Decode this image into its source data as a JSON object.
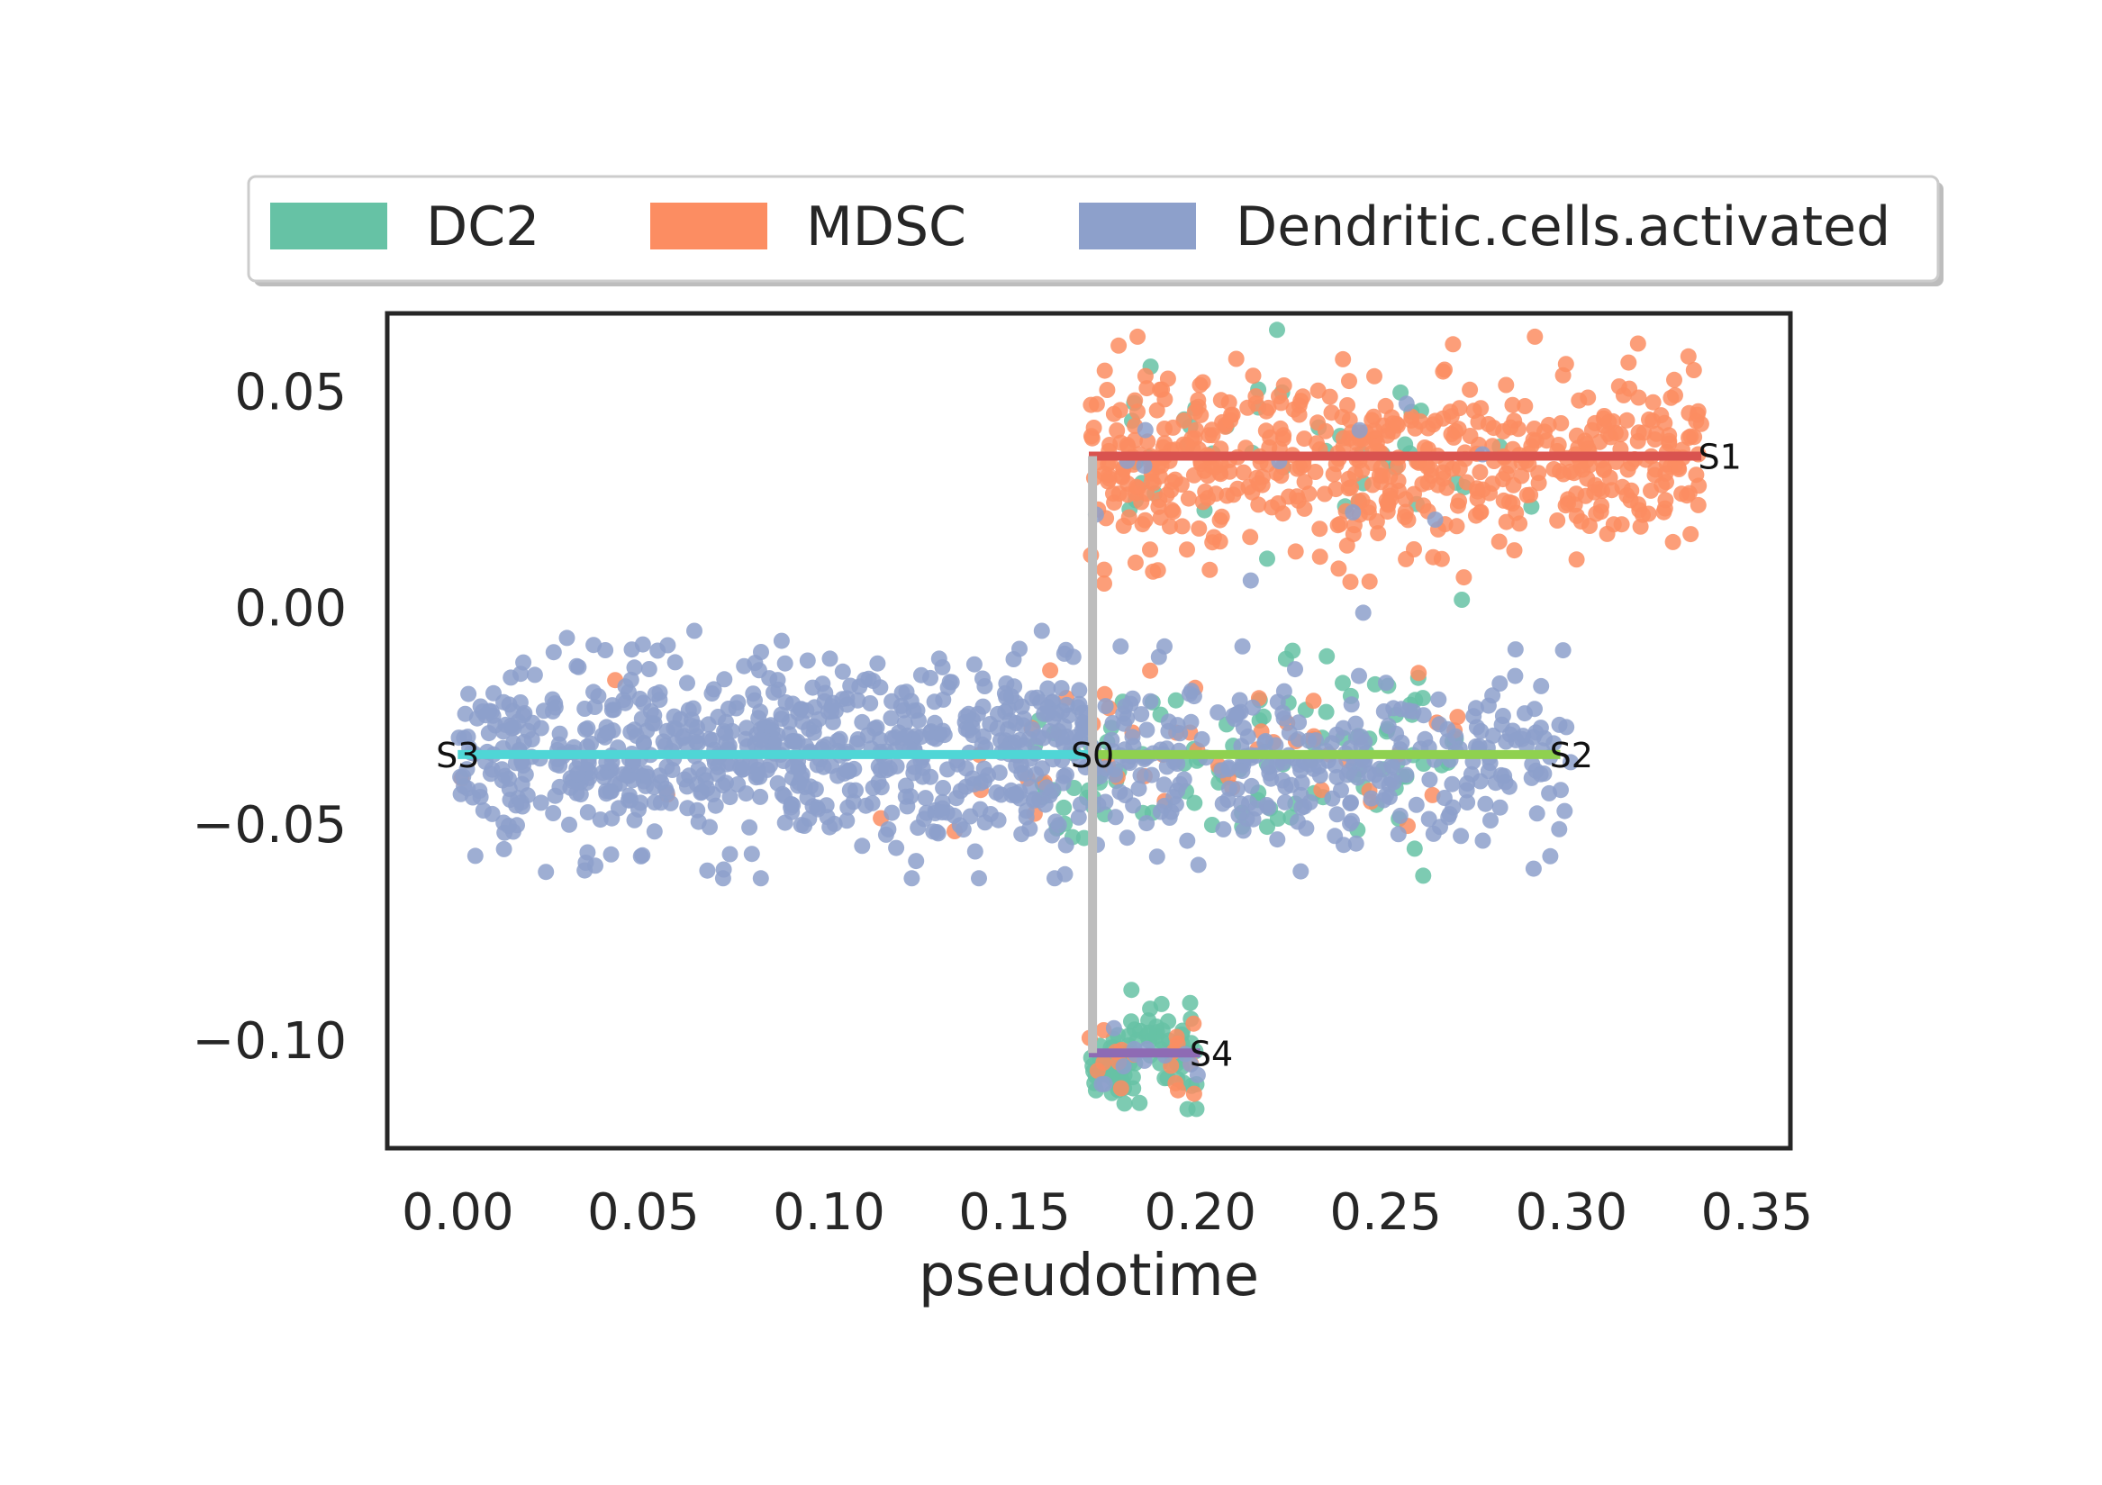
{
  "chart_data": {
    "type": "scatter",
    "title": "",
    "xlabel": "pseudotime",
    "ylabel": "",
    "xlim": [
      -0.019,
      0.359
    ],
    "ylim": [
      -0.125,
      0.068
    ],
    "xticks": [
      0.0,
      0.05,
      0.1,
      0.15,
      0.2,
      0.25,
      0.3,
      0.35
    ],
    "xtick_labels": [
      "0.00",
      "0.05",
      "0.10",
      "0.15",
      "0.20",
      "0.25",
      "0.30",
      "0.35"
    ],
    "yticks": [
      0.05,
      0.0,
      -0.05,
      -0.1
    ],
    "ytick_labels": [
      "0.05",
      "0.00",
      "−0.05",
      "−0.10"
    ],
    "grid": false,
    "legend": {
      "placement": "top",
      "entries": [
        {
          "label": "DC2",
          "color": "#66c2a5"
        },
        {
          "label": "MDSC",
          "color": "#fc8d62"
        },
        {
          "label": "Dendritic.cells.activated",
          "color": "#8da0cb"
        }
      ]
    },
    "branches": [
      {
        "name": "S1",
        "color": "#d9534f",
        "points": [
          [
            0.17,
            0.035
          ],
          [
            0.335,
            0.035
          ]
        ],
        "label_pos": [
          0.34,
          0.035
        ]
      },
      {
        "name": "S2",
        "color": "#8fd14f",
        "points": [
          [
            0.17,
            -0.034
          ],
          [
            0.297,
            -0.034
          ]
        ],
        "label_pos": [
          0.3,
          -0.034
        ]
      },
      {
        "name": "S3",
        "color": "#4fd6d6",
        "points": [
          [
            0.0,
            -0.034
          ],
          [
            0.17,
            -0.034
          ]
        ],
        "label_pos": [
          0.0,
          -0.034
        ]
      },
      {
        "name": "S4",
        "color": "#8e6bb4",
        "points": [
          [
            0.17,
            -0.103
          ],
          [
            0.2,
            -0.103
          ]
        ],
        "label_pos": [
          0.203,
          -0.103
        ]
      },
      {
        "name": "S0",
        "color": "#bdbdbd",
        "points": [
          [
            0.171,
            0.035
          ],
          [
            0.171,
            -0.103
          ]
        ],
        "label_pos": [
          0.171,
          -0.034
        ]
      }
    ],
    "series": [
      {
        "name": "DC2",
        "color": "#66c2a5",
        "clusters": [
          {
            "x_range": [
              0.17,
              0.2
            ],
            "y_center": -0.104,
            "y_spread": 0.006,
            "n": 85
          },
          {
            "x_range": [
              0.155,
              0.27
            ],
            "y_center": -0.036,
            "y_spread": 0.01,
            "n": 110
          },
          {
            "x_range": [
              0.18,
              0.29
            ],
            "y_center": 0.033,
            "y_spread": 0.012,
            "n": 45
          }
        ]
      },
      {
        "name": "MDSC",
        "color": "#fc8d62",
        "clusters": [
          {
            "x_range": [
              0.17,
              0.335
            ],
            "y_center": 0.034,
            "y_spread": 0.011,
            "n": 560
          },
          {
            "x_range": [
              0.14,
              0.27
            ],
            "y_center": -0.034,
            "y_spread": 0.011,
            "n": 45
          },
          {
            "x_range": [
              0.0,
              0.15
            ],
            "y_center": -0.045,
            "y_spread": 0.011,
            "n": 6
          },
          {
            "x_range": [
              0.17,
              0.2
            ],
            "y_center": -0.104,
            "y_spread": 0.006,
            "n": 18
          }
        ]
      },
      {
        "name": "Dendritic.cells.activated",
        "color": "#8da0cb",
        "clusters": [
          {
            "x_range": [
              0.0,
              0.17
            ],
            "y_center": -0.034,
            "y_spread": 0.011,
            "n": 720
          },
          {
            "x_range": [
              0.17,
              0.3
            ],
            "y_center": -0.035,
            "y_spread": 0.01,
            "n": 310
          },
          {
            "x_range": [
              0.17,
              0.28
            ],
            "y_center": 0.03,
            "y_spread": 0.012,
            "n": 12
          },
          {
            "x_range": [
              0.17,
              0.2
            ],
            "y_center": -0.104,
            "y_spread": 0.006,
            "n": 12
          }
        ]
      }
    ]
  }
}
